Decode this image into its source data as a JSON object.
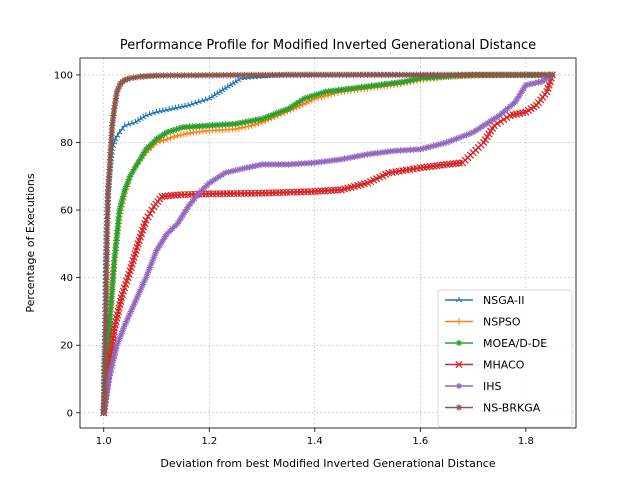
{
  "chart_data": {
    "type": "line",
    "title": "Performance Profile for Modified Inverted Generational Distance",
    "xlabel": "Deviation from best Modified Inverted Generational Distance",
    "ylabel": "Percentage of Executions",
    "xlim": [
      0.955,
      1.895
    ],
    "ylim": [
      -4.5,
      105
    ],
    "xticks": [
      1.0,
      1.2,
      1.4,
      1.6,
      1.8
    ],
    "xtick_labels": [
      "1.0",
      "1.2",
      "1.4",
      "1.6",
      "1.8"
    ],
    "yticks": [
      0,
      20,
      40,
      60,
      80,
      100
    ],
    "ytick_labels": [
      "0",
      "20",
      "40",
      "60",
      "80",
      "100"
    ],
    "grid": true,
    "legend_position": "lower-right",
    "series": [
      {
        "name": "NSGA-II",
        "color": "#1f77b4",
        "marker": "tri_up",
        "points": [
          [
            1.0,
            0
          ],
          [
            1.0,
            12
          ],
          [
            1.002,
            25
          ],
          [
            1.003,
            40
          ],
          [
            1.005,
            55
          ],
          [
            1.008,
            65
          ],
          [
            1.012,
            72
          ],
          [
            1.016,
            78
          ],
          [
            1.022,
            81
          ],
          [
            1.03,
            83
          ],
          [
            1.04,
            85
          ],
          [
            1.06,
            86
          ],
          [
            1.08,
            88
          ],
          [
            1.1,
            89
          ],
          [
            1.13,
            90
          ],
          [
            1.16,
            91
          ],
          [
            1.18,
            92
          ],
          [
            1.2,
            93
          ],
          [
            1.22,
            95
          ],
          [
            1.24,
            97
          ],
          [
            1.26,
            99
          ],
          [
            1.3,
            99.5
          ],
          [
            1.35,
            100
          ],
          [
            1.45,
            100
          ],
          [
            1.6,
            100
          ],
          [
            1.75,
            100
          ],
          [
            1.85,
            100
          ]
        ]
      },
      {
        "name": "NSPSO",
        "color": "#ff7f0e",
        "marker": "plus",
        "points": [
          [
            1.0,
            0
          ],
          [
            1.005,
            15
          ],
          [
            1.012,
            30
          ],
          [
            1.02,
            45
          ],
          [
            1.03,
            58
          ],
          [
            1.04,
            65
          ],
          [
            1.05,
            70
          ],
          [
            1.06,
            73
          ],
          [
            1.08,
            77
          ],
          [
            1.1,
            80
          ],
          [
            1.12,
            81
          ],
          [
            1.14,
            82
          ],
          [
            1.17,
            83
          ],
          [
            1.2,
            83.5
          ],
          [
            1.25,
            84
          ],
          [
            1.28,
            85
          ],
          [
            1.3,
            86
          ],
          [
            1.33,
            88
          ],
          [
            1.36,
            90
          ],
          [
            1.4,
            93
          ],
          [
            1.45,
            95
          ],
          [
            1.5,
            96
          ],
          [
            1.55,
            97
          ],
          [
            1.6,
            98.5
          ],
          [
            1.65,
            99.5
          ],
          [
            1.75,
            100
          ],
          [
            1.85,
            100
          ]
        ]
      },
      {
        "name": "MOEA/D-DE",
        "color": "#2ca02c",
        "marker": "star",
        "points": [
          [
            1.0,
            0
          ],
          [
            1.006,
            15
          ],
          [
            1.012,
            28
          ],
          [
            1.02,
            45
          ],
          [
            1.03,
            60
          ],
          [
            1.04,
            66
          ],
          [
            1.05,
            70
          ],
          [
            1.065,
            74
          ],
          [
            1.08,
            78
          ],
          [
            1.1,
            81
          ],
          [
            1.12,
            83
          ],
          [
            1.15,
            84.5
          ],
          [
            1.2,
            85
          ],
          [
            1.25,
            85.5
          ],
          [
            1.3,
            87
          ],
          [
            1.35,
            90
          ],
          [
            1.38,
            93
          ],
          [
            1.42,
            95
          ],
          [
            1.47,
            96
          ],
          [
            1.52,
            97
          ],
          [
            1.57,
            98
          ],
          [
            1.6,
            99
          ],
          [
            1.7,
            100
          ],
          [
            1.8,
            100
          ],
          [
            1.85,
            100
          ]
        ]
      },
      {
        "name": "MHACO",
        "color": "#d62728",
        "marker": "x",
        "points": [
          [
            1.0,
            0
          ],
          [
            1.008,
            10
          ],
          [
            1.02,
            25
          ],
          [
            1.035,
            35
          ],
          [
            1.05,
            42
          ],
          [
            1.065,
            50
          ],
          [
            1.08,
            57
          ],
          [
            1.095,
            61
          ],
          [
            1.11,
            64
          ],
          [
            1.14,
            64.5
          ],
          [
            1.2,
            64.8
          ],
          [
            1.3,
            65
          ],
          [
            1.4,
            65.5
          ],
          [
            1.45,
            66
          ],
          [
            1.5,
            68
          ],
          [
            1.54,
            71
          ],
          [
            1.6,
            72.5
          ],
          [
            1.65,
            73.5
          ],
          [
            1.68,
            74
          ],
          [
            1.7,
            77
          ],
          [
            1.72,
            80
          ],
          [
            1.74,
            85
          ],
          [
            1.77,
            88
          ],
          [
            1.8,
            89
          ],
          [
            1.82,
            91
          ],
          [
            1.84,
            95
          ],
          [
            1.85,
            100
          ]
        ]
      },
      {
        "name": "IHS",
        "color": "#9467bd",
        "marker": "star",
        "points": [
          [
            1.0,
            0
          ],
          [
            1.01,
            10
          ],
          [
            1.025,
            20
          ],
          [
            1.04,
            26
          ],
          [
            1.06,
            33
          ],
          [
            1.08,
            40
          ],
          [
            1.1,
            48
          ],
          [
            1.12,
            53
          ],
          [
            1.14,
            56
          ],
          [
            1.16,
            61
          ],
          [
            1.18,
            65
          ],
          [
            1.2,
            68
          ],
          [
            1.23,
            71
          ],
          [
            1.27,
            72.5
          ],
          [
            1.3,
            73.5
          ],
          [
            1.35,
            73.5
          ],
          [
            1.4,
            74
          ],
          [
            1.45,
            75
          ],
          [
            1.5,
            76.5
          ],
          [
            1.55,
            77.5
          ],
          [
            1.6,
            78
          ],
          [
            1.65,
            80
          ],
          [
            1.7,
            83
          ],
          [
            1.75,
            88
          ],
          [
            1.78,
            92
          ],
          [
            1.8,
            97
          ],
          [
            1.83,
            98
          ],
          [
            1.85,
            100
          ]
        ]
      },
      {
        "name": "NS-BRKGA",
        "color": "#8c564b",
        "marker": "star",
        "points": [
          [
            1.0,
            0
          ],
          [
            1.001,
            5
          ],
          [
            1.002,
            15
          ],
          [
            1.004,
            30
          ],
          [
            1.006,
            50
          ],
          [
            1.008,
            65
          ],
          [
            1.012,
            75
          ],
          [
            1.016,
            85
          ],
          [
            1.02,
            90
          ],
          [
            1.025,
            95
          ],
          [
            1.032,
            97.5
          ],
          [
            1.04,
            98.5
          ],
          [
            1.05,
            99
          ],
          [
            1.07,
            99.5
          ],
          [
            1.1,
            99.8
          ],
          [
            1.3,
            100
          ],
          [
            1.6,
            100
          ],
          [
            1.85,
            100
          ]
        ]
      }
    ]
  }
}
